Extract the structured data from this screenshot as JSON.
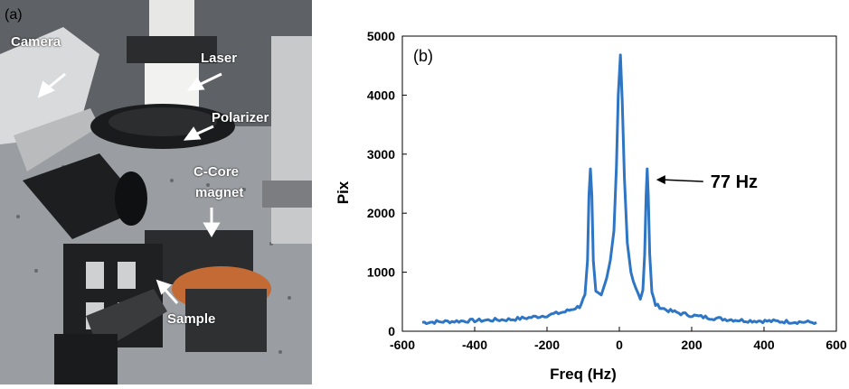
{
  "panel_a": {
    "letter": "(a)",
    "labels": {
      "camera": "Camera",
      "laser": "Laser",
      "polarizer": "Polarizer",
      "magnet_line1": "C-Core",
      "magnet_line2": "magnet",
      "sample": "Sample"
    }
  },
  "panel_b": {
    "letter": "(b)"
  },
  "chart_data": {
    "type": "line",
    "title": "",
    "xlabel": "Freq (Hz)",
    "ylabel": "Pix",
    "xlim": [
      -600,
      600
    ],
    "ylim": [
      0,
      5000
    ],
    "xticks": [
      -600,
      -400,
      -200,
      0,
      200,
      400,
      600
    ],
    "yticks": [
      0,
      1000,
      2000,
      3000,
      4000,
      5000
    ],
    "grid": false,
    "color": "#2e75c4",
    "series": [
      {
        "points": [
          [
            -545,
            150
          ],
          [
            -500,
            160
          ],
          [
            -450,
            170
          ],
          [
            -400,
            180
          ],
          [
            -350,
            190
          ],
          [
            -300,
            200
          ],
          [
            -250,
            230
          ],
          [
            -200,
            270
          ],
          [
            -150,
            330
          ],
          [
            -110,
            420
          ],
          [
            -95,
            600
          ],
          [
            -88,
            1200
          ],
          [
            -84,
            2300
          ],
          [
            -80,
            2750
          ],
          [
            -76,
            2300
          ],
          [
            -72,
            1200
          ],
          [
            -65,
            650
          ],
          [
            -50,
            600
          ],
          [
            -35,
            900
          ],
          [
            -25,
            1200
          ],
          [
            -15,
            1700
          ],
          [
            -8,
            2800
          ],
          [
            -3,
            4000
          ],
          [
            3,
            4680
          ],
          [
            8,
            3900
          ],
          [
            14,
            2600
          ],
          [
            22,
            1500
          ],
          [
            32,
            1000
          ],
          [
            45,
            750
          ],
          [
            58,
            560
          ],
          [
            65,
            700
          ],
          [
            70,
            1300
          ],
          [
            74,
            2300
          ],
          [
            77,
            2750
          ],
          [
            80,
            2300
          ],
          [
            84,
            1300
          ],
          [
            90,
            650
          ],
          [
            100,
            450
          ],
          [
            130,
            360
          ],
          [
            170,
            300
          ],
          [
            220,
            250
          ],
          [
            280,
            210
          ],
          [
            350,
            180
          ],
          [
            420,
            170
          ],
          [
            480,
            160
          ],
          [
            545,
            150
          ]
        ]
      }
    ],
    "annotations": [
      {
        "text": "77 Hz",
        "x": 77,
        "y": 2750
      }
    ]
  }
}
